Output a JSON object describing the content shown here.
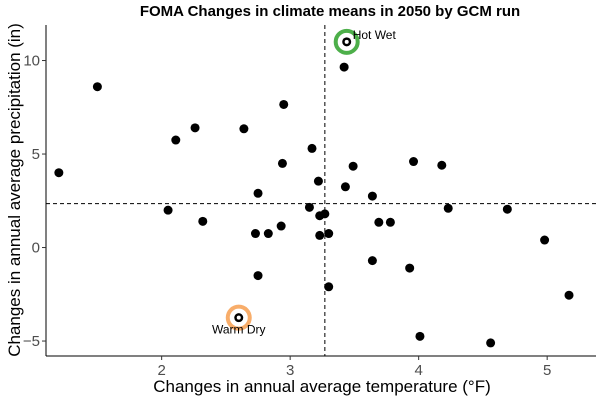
{
  "chart_data": {
    "type": "scatter",
    "title": "FOMA Changes in climate means in 2050 by GCM run",
    "xlabel": "Changes in annual average temperature (°F)",
    "ylabel": "Changes in annual average precipitation (in)",
    "xlim": [
      1.1,
      5.38
    ],
    "ylim": [
      -5.8,
      11.9
    ],
    "xticks": [
      2,
      3,
      4,
      5
    ],
    "yticks": [
      -5,
      0,
      5,
      10
    ],
    "grid": false,
    "reference_lines": {
      "vertical_x": 3.27,
      "horizontal_y": 2.35
    },
    "points": [
      {
        "x": 1.2,
        "y": 4.0
      },
      {
        "x": 1.5,
        "y": 8.6
      },
      {
        "x": 2.05,
        "y": 2.0
      },
      {
        "x": 2.11,
        "y": 5.75
      },
      {
        "x": 2.26,
        "y": 6.4
      },
      {
        "x": 2.32,
        "y": 1.4
      },
      {
        "x": 2.6,
        "y": -3.75
      },
      {
        "x": 2.64,
        "y": 6.35
      },
      {
        "x": 2.73,
        "y": 0.75
      },
      {
        "x": 2.75,
        "y": 2.9
      },
      {
        "x": 2.75,
        "y": -1.5
      },
      {
        "x": 2.83,
        "y": 0.75
      },
      {
        "x": 2.93,
        "y": 1.15
      },
      {
        "x": 2.94,
        "y": 4.5
      },
      {
        "x": 2.95,
        "y": 7.65
      },
      {
        "x": 3.15,
        "y": 2.15
      },
      {
        "x": 3.17,
        "y": 5.3
      },
      {
        "x": 3.22,
        "y": 3.55
      },
      {
        "x": 3.23,
        "y": 1.7
      },
      {
        "x": 3.23,
        "y": 0.65
      },
      {
        "x": 3.27,
        "y": 1.8
      },
      {
        "x": 3.3,
        "y": 0.75
      },
      {
        "x": 3.3,
        "y": -2.1
      },
      {
        "x": 3.42,
        "y": 9.65
      },
      {
        "x": 3.43,
        "y": 3.25
      },
      {
        "x": 3.44,
        "y": 11.0
      },
      {
        "x": 3.49,
        "y": 4.35
      },
      {
        "x": 3.64,
        "y": 2.75
      },
      {
        "x": 3.64,
        "y": -0.7
      },
      {
        "x": 3.69,
        "y": 1.35
      },
      {
        "x": 3.78,
        "y": 1.35
      },
      {
        "x": 3.93,
        "y": -1.1
      },
      {
        "x": 3.96,
        "y": 4.6
      },
      {
        "x": 4.01,
        "y": -4.75
      },
      {
        "x": 4.18,
        "y": 4.4
      },
      {
        "x": 4.23,
        "y": 2.1
      },
      {
        "x": 4.56,
        "y": -5.1
      },
      {
        "x": 4.69,
        "y": 2.05
      },
      {
        "x": 4.98,
        "y": 0.4
      },
      {
        "x": 5.17,
        "y": -2.55
      }
    ],
    "highlights": [
      {
        "label": "Hot Wet",
        "x": 3.44,
        "y": 11.0,
        "color": "#4daf4a"
      },
      {
        "label": "Warm Dry",
        "x": 2.6,
        "y": -3.75,
        "color": "#f8ad6a"
      }
    ]
  }
}
